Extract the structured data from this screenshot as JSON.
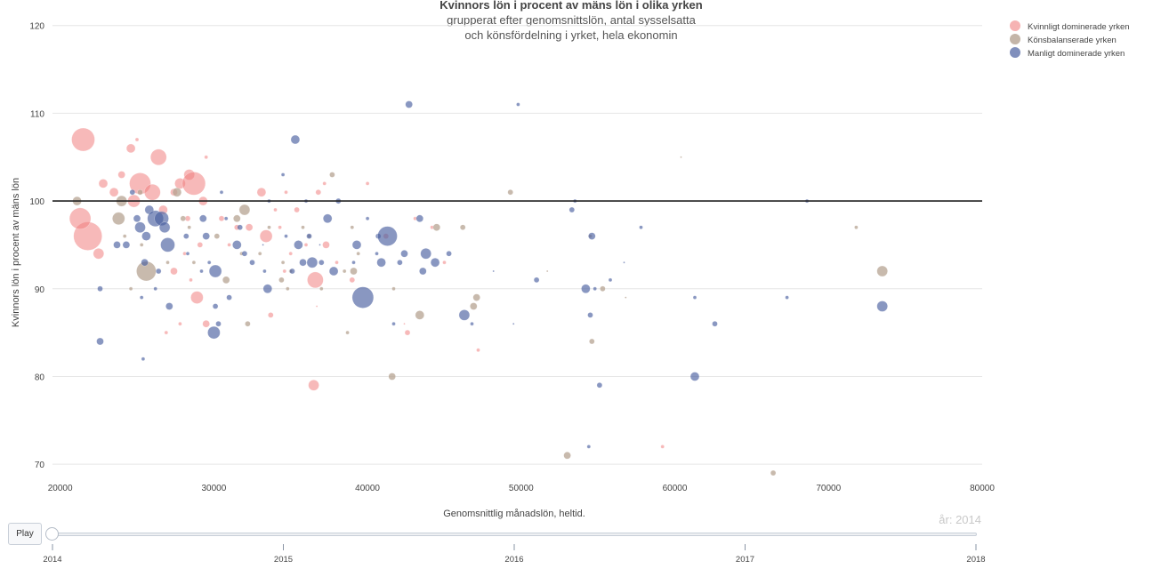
{
  "chart_data": {
    "type": "scatter",
    "title": "Kvinnors lön i procent av mäns lön i olika yrken",
    "subtitle_line1": "grupperat efter genomsnittslön, antal sysselsatta",
    "subtitle_line2": "och könsfördelning i yrket, hela ekonomin",
    "xlabel": "Genomsnittlig månadslön, heltid.",
    "ylabel": "Kvinnors lön i procent av mäns lön",
    "xlim": [
      19500,
      80000
    ],
    "ylim": [
      69,
      122
    ],
    "x_ticks": [
      20000,
      30000,
      40000,
      50000,
      60000,
      70000,
      80000
    ],
    "y_ticks": [
      70,
      80,
      90,
      100,
      110,
      120
    ],
    "reference_line_y": 100,
    "grid": true,
    "legend_position": "top-right",
    "frame_label": "år: 2014",
    "series": [
      {
        "name": "Kvinnligt dominerade yrken",
        "color": "#f08080",
        "points": [
          [
            21500,
            107,
            13
          ],
          [
            21800,
            96,
            16
          ],
          [
            21300,
            98,
            12
          ],
          [
            22500,
            94,
            6
          ],
          [
            22800,
            102,
            5
          ],
          [
            23500,
            101,
            5
          ],
          [
            24000,
            103,
            4
          ],
          [
            24600,
            106,
            5
          ],
          [
            25000,
            107,
            2
          ],
          [
            25200,
            102,
            12
          ],
          [
            24800,
            100,
            7
          ],
          [
            26000,
            101,
            9
          ],
          [
            26400,
            105,
            9
          ],
          [
            26700,
            99,
            5
          ],
          [
            27400,
            101,
            4
          ],
          [
            27800,
            102,
            6
          ],
          [
            28400,
            103,
            6
          ],
          [
            28700,
            102,
            13
          ],
          [
            29300,
            100,
            5
          ],
          [
            29500,
            105,
            2
          ],
          [
            28300,
            98,
            3
          ],
          [
            28100,
            94,
            2
          ],
          [
            27400,
            92,
            4
          ],
          [
            28500,
            91,
            2
          ],
          [
            29100,
            95,
            3
          ],
          [
            28900,
            89,
            7
          ],
          [
            29500,
            86,
            4
          ],
          [
            26900,
            85,
            2
          ],
          [
            27800,
            86,
            2
          ],
          [
            30500,
            98,
            3
          ],
          [
            31000,
            95,
            2
          ],
          [
            31500,
            97,
            3
          ],
          [
            32300,
            97,
            4
          ],
          [
            33100,
            101,
            5
          ],
          [
            33400,
            96,
            7
          ],
          [
            34000,
            99,
            2
          ],
          [
            34300,
            97,
            2
          ],
          [
            34700,
            101,
            2
          ],
          [
            35400,
            99,
            3
          ],
          [
            35000,
            94,
            2
          ],
          [
            34600,
            92,
            2
          ],
          [
            33700,
            87,
            3
          ],
          [
            36000,
            95,
            2
          ],
          [
            36500,
            79,
            6
          ],
          [
            36600,
            91,
            9
          ],
          [
            36800,
            101,
            3
          ],
          [
            37200,
            102,
            2
          ],
          [
            37300,
            95,
            4
          ],
          [
            38000,
            93,
            2
          ],
          [
            39000,
            91,
            3
          ],
          [
            40000,
            102,
            2
          ],
          [
            41200,
            96,
            3
          ],
          [
            42600,
            85,
            3
          ],
          [
            43100,
            98,
            2
          ],
          [
            44200,
            97,
            2
          ],
          [
            45000,
            93,
            2
          ],
          [
            47200,
            83,
            2
          ],
          [
            59200,
            72,
            2
          ],
          [
            36700,
            88,
            1
          ],
          [
            42400,
            86,
            1
          ]
        ]
      },
      {
        "name": "Könsbalanserade yrken",
        "color": "#b5a392",
        "points": [
          [
            21100,
            100,
            5
          ],
          [
            23800,
            98,
            7
          ],
          [
            24000,
            100,
            6
          ],
          [
            25600,
            92,
            11
          ],
          [
            25200,
            101,
            3
          ],
          [
            24200,
            96,
            2
          ],
          [
            25300,
            95,
            2
          ],
          [
            24600,
            90,
            2
          ],
          [
            27600,
            101,
            5
          ],
          [
            28000,
            98,
            3
          ],
          [
            28400,
            97,
            2
          ],
          [
            27000,
            93,
            2
          ],
          [
            28700,
            93,
            2
          ],
          [
            30200,
            96,
            3
          ],
          [
            30800,
            91,
            4
          ],
          [
            31500,
            98,
            4
          ],
          [
            32000,
            99,
            6
          ],
          [
            32200,
            86,
            3
          ],
          [
            31800,
            94,
            2
          ],
          [
            33000,
            94,
            2
          ],
          [
            33600,
            97,
            2
          ],
          [
            34500,
            93,
            2
          ],
          [
            34400,
            91,
            3
          ],
          [
            34800,
            90,
            2
          ],
          [
            35000,
            92,
            2
          ],
          [
            35800,
            97,
            2
          ],
          [
            36200,
            96,
            2
          ],
          [
            37000,
            90,
            2
          ],
          [
            37700,
            103,
            3
          ],
          [
            38500,
            92,
            2
          ],
          [
            38700,
            85,
            2
          ],
          [
            39000,
            97,
            2
          ],
          [
            39100,
            92,
            4
          ],
          [
            39400,
            94,
            2
          ],
          [
            41700,
            90,
            2
          ],
          [
            41600,
            80,
            4
          ],
          [
            43400,
            87,
            5
          ],
          [
            44500,
            97,
            4
          ],
          [
            46200,
            97,
            3
          ],
          [
            46900,
            88,
            4
          ],
          [
            47100,
            89,
            4
          ],
          [
            49300,
            101,
            3
          ],
          [
            51700,
            92,
            1
          ],
          [
            53000,
            71,
            4
          ],
          [
            54600,
            84,
            3
          ],
          [
            55300,
            90,
            3
          ],
          [
            56800,
            89,
            1
          ],
          [
            60400,
            105,
            1
          ],
          [
            66400,
            69,
            3
          ],
          [
            71800,
            97,
            2
          ],
          [
            73500,
            92,
            6
          ],
          [
            54500,
            96,
            2
          ]
        ]
      },
      {
        "name": "Manligt dominerade yrken",
        "color": "#4a5fa0",
        "points": [
          [
            22600,
            90,
            3
          ],
          [
            22600,
            84,
            4
          ],
          [
            23700,
            95,
            4
          ],
          [
            24300,
            95,
            4
          ],
          [
            24700,
            101,
            3
          ],
          [
            25000,
            98,
            4
          ],
          [
            25200,
            97,
            6
          ],
          [
            25500,
            93,
            4
          ],
          [
            25600,
            96,
            5
          ],
          [
            25800,
            99,
            5
          ],
          [
            26200,
            98,
            9
          ],
          [
            26600,
            98,
            8
          ],
          [
            26800,
            97,
            6
          ],
          [
            27000,
            95,
            8
          ],
          [
            26400,
            92,
            3
          ],
          [
            26200,
            90,
            2
          ],
          [
            25300,
            89,
            2
          ],
          [
            25400,
            82,
            2
          ],
          [
            27100,
            88,
            4
          ],
          [
            28200,
            96,
            3
          ],
          [
            28300,
            94,
            2
          ],
          [
            29300,
            98,
            4
          ],
          [
            29200,
            92,
            2
          ],
          [
            29500,
            96,
            4
          ],
          [
            29700,
            93,
            2
          ],
          [
            30100,
            92,
            7
          ],
          [
            30000,
            85,
            7
          ],
          [
            30100,
            88,
            3
          ],
          [
            30300,
            86,
            3
          ],
          [
            30500,
            101,
            2
          ],
          [
            30800,
            98,
            2
          ],
          [
            31000,
            89,
            3
          ],
          [
            31500,
            95,
            5
          ],
          [
            31700,
            97,
            3
          ],
          [
            32000,
            94,
            3
          ],
          [
            32500,
            93,
            3
          ],
          [
            33300,
            92,
            2
          ],
          [
            33500,
            90,
            5
          ],
          [
            33600,
            100,
            2
          ],
          [
            34500,
            103,
            2
          ],
          [
            34700,
            96,
            2
          ],
          [
            35100,
            92,
            3
          ],
          [
            35500,
            95,
            5
          ],
          [
            35300,
            107,
            5
          ],
          [
            35800,
            93,
            4
          ],
          [
            36200,
            96,
            3
          ],
          [
            36400,
            93,
            6
          ],
          [
            36000,
            100,
            2
          ],
          [
            37000,
            93,
            3
          ],
          [
            37400,
            98,
            5
          ],
          [
            37800,
            92,
            5
          ],
          [
            38100,
            100,
            3
          ],
          [
            39100,
            93,
            2
          ],
          [
            39300,
            95,
            5
          ],
          [
            39700,
            89,
            12
          ],
          [
            40000,
            98,
            2
          ],
          [
            40700,
            96,
            3
          ],
          [
            40600,
            94,
            2
          ],
          [
            40900,
            93,
            5
          ],
          [
            41300,
            96,
            11
          ],
          [
            41700,
            86,
            2
          ],
          [
            42100,
            93,
            3
          ],
          [
            42400,
            94,
            4
          ],
          [
            42700,
            111,
            4
          ],
          [
            43400,
            98,
            4
          ],
          [
            43800,
            94,
            6
          ],
          [
            43600,
            92,
            4
          ],
          [
            44400,
            93,
            5
          ],
          [
            45300,
            94,
            3
          ],
          [
            46300,
            87,
            6
          ],
          [
            46800,
            86,
            2
          ],
          [
            48200,
            92,
            1
          ],
          [
            49500,
            86,
            1
          ],
          [
            49800,
            111,
            2
          ],
          [
            51000,
            91,
            3
          ],
          [
            53300,
            99,
            3
          ],
          [
            53500,
            100,
            2
          ],
          [
            54200,
            90,
            5
          ],
          [
            54600,
            96,
            4
          ],
          [
            54800,
            90,
            2
          ],
          [
            54400,
            72,
            2
          ],
          [
            54500,
            87,
            3
          ],
          [
            55100,
            79,
            3
          ],
          [
            55800,
            91,
            2
          ],
          [
            57800,
            97,
            2
          ],
          [
            61300,
            89,
            2
          ],
          [
            61300,
            80,
            5
          ],
          [
            62600,
            86,
            3
          ],
          [
            67300,
            89,
            2
          ],
          [
            68600,
            100,
            2
          ],
          [
            73500,
            88,
            6
          ],
          [
            56700,
            93,
            1
          ],
          [
            36900,
            95,
            1
          ],
          [
            33200,
            95,
            1
          ]
        ]
      }
    ]
  },
  "slider": {
    "play_label": "Play",
    "tick_labels": [
      "2014",
      "2015",
      "2016",
      "2017",
      "2018"
    ]
  }
}
